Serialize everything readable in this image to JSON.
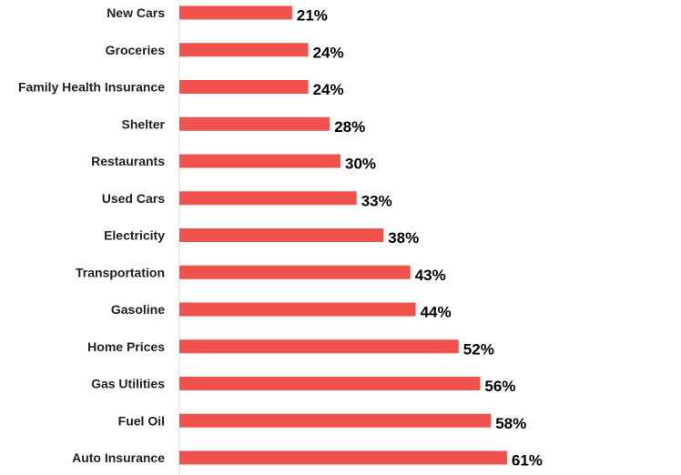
{
  "chart_data": {
    "type": "bar",
    "orientation": "horizontal",
    "categories": [
      "New Cars",
      "Groceries",
      "Family Health Insurance",
      "Shelter",
      "Restaurants",
      "Used Cars",
      "Electricity",
      "Transportation",
      "Gasoline",
      "Home Prices",
      "Gas Utilities",
      "Fuel Oil",
      "Auto Insurance"
    ],
    "values": [
      21,
      24,
      24,
      28,
      30,
      33,
      38,
      43,
      44,
      52,
      56,
      58,
      61
    ],
    "value_labels": [
      "21%",
      "24%",
      "24%",
      "28%",
      "30%",
      "33%",
      "38%",
      "43%",
      "44%",
      "52%",
      "56%",
      "58%",
      "61%"
    ],
    "xlim": [
      0,
      100
    ],
    "grid": false,
    "bar_color": "#f0524d",
    "axis_color": "#d9d9d9"
  }
}
